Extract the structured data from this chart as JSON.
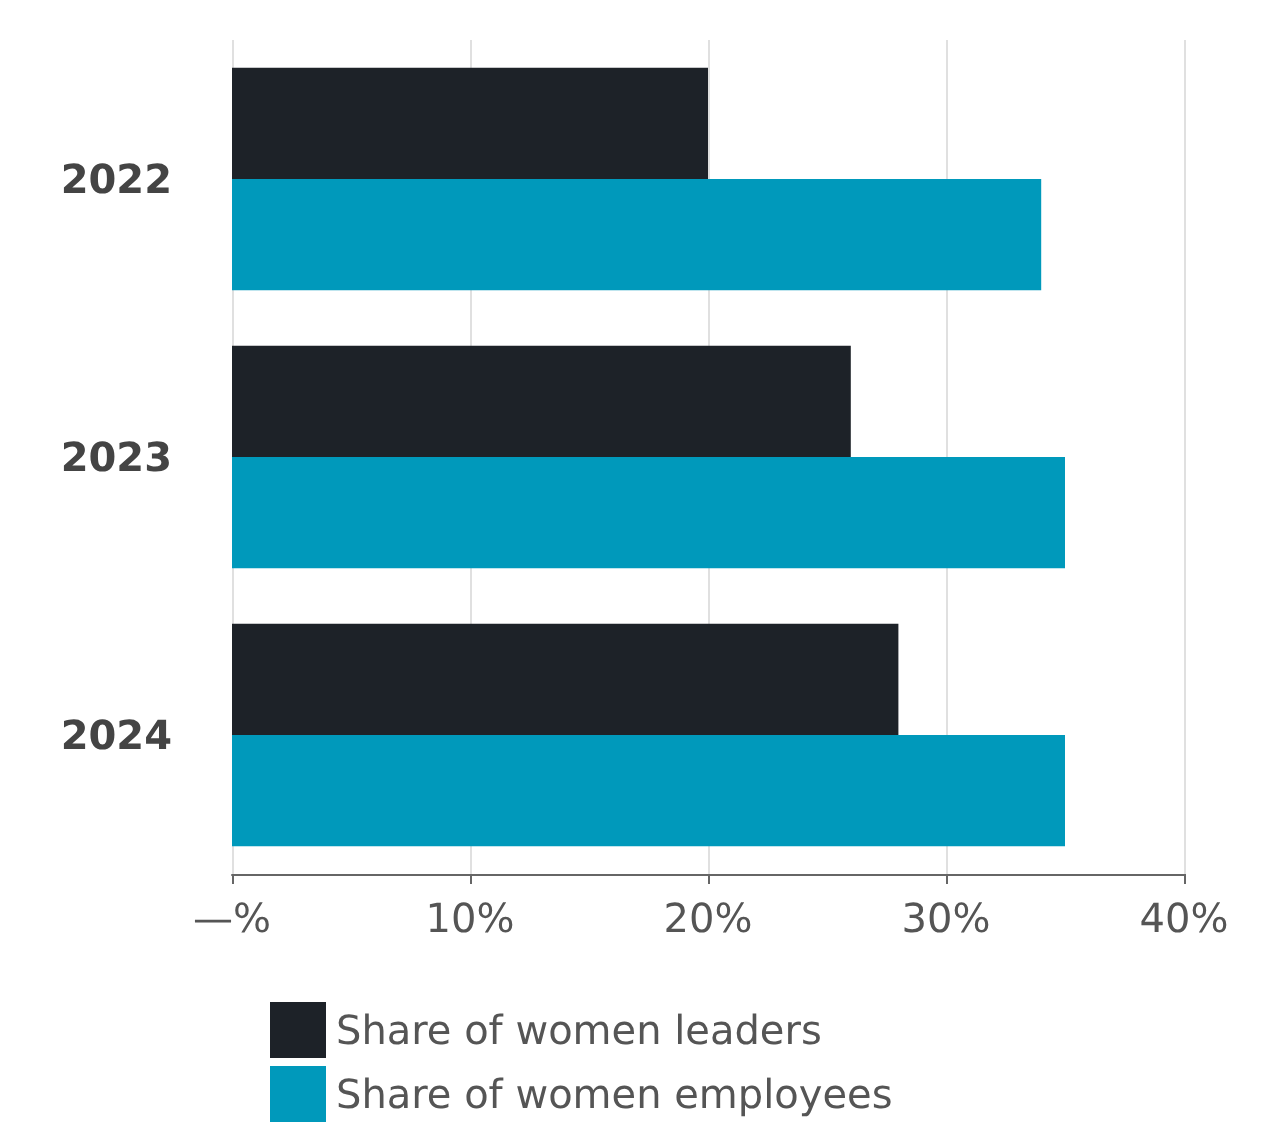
{
  "chart_data": {
    "type": "bar",
    "orientation": "horizontal",
    "categories": [
      "2022",
      "2023",
      "2024"
    ],
    "series": [
      {
        "name": "Share of women leaders",
        "color": "#1d2228",
        "values": [
          20,
          26,
          28
        ]
      },
      {
        "name": "Share of women employees",
        "color": "#0099bb",
        "values": [
          34,
          35,
          35
        ]
      }
    ],
    "xlim": [
      0,
      40
    ],
    "xticks": [
      {
        "value": 0,
        "label": "—%"
      },
      {
        "value": 10,
        "label": "10%"
      },
      {
        "value": 20,
        "label": "20%"
      },
      {
        "value": 30,
        "label": "30%"
      },
      {
        "value": 40,
        "label": "40%"
      }
    ],
    "grid": "x",
    "legend": "bottom"
  }
}
